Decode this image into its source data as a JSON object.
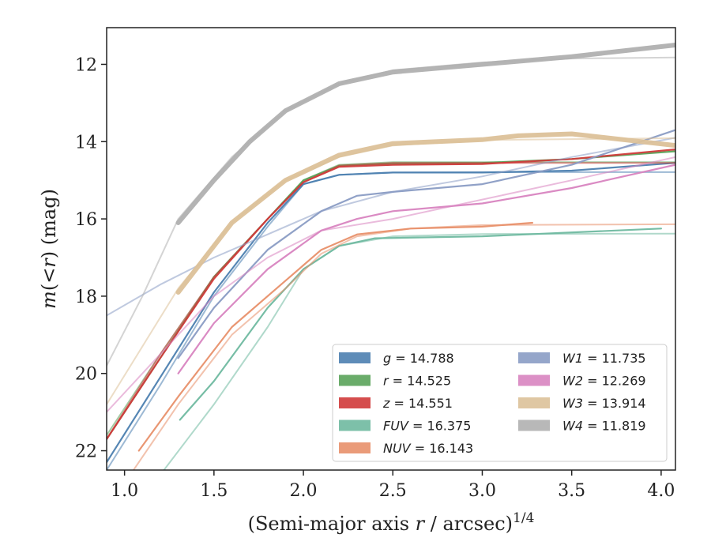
{
  "chart_data": {
    "type": "line",
    "xlabel_main": "(Semi-major axis ",
    "xlabel_var": "r",
    "xlabel_tail": " / arcsec)",
    "xlabel_exp": "1/4",
    "ylabel_m": "m",
    "ylabel_mid": "(<",
    "ylabel_r": "r",
    "ylabel_tail": ") (mag)",
    "xlim": [
      0.9,
      4.08
    ],
    "ylim": [
      22.5,
      11.05
    ],
    "y_inverted": true,
    "xticks": [
      1.0,
      1.5,
      2.0,
      2.5,
      3.0,
      3.5,
      4.0
    ],
    "xtick_labels": [
      "1.0",
      "1.5",
      "2.0",
      "2.5",
      "3.0",
      "3.5",
      "4.0"
    ],
    "yticks": [
      12,
      14,
      16,
      18,
      20,
      22
    ],
    "ytick_labels": [
      "12",
      "14",
      "16",
      "18",
      "20",
      "22"
    ],
    "grid": false,
    "legend_position": "lower-right",
    "series": [
      {
        "name": "g",
        "value_text": "= 14.788",
        "color": "#4c7fb0",
        "width": 2,
        "fit": [
          [
            0.9,
            22.5
          ],
          [
            1.2,
            20.3
          ],
          [
            1.5,
            18.0
          ],
          [
            1.8,
            16.2
          ],
          [
            2.0,
            15.1
          ],
          [
            2.2,
            14.86
          ],
          [
            2.5,
            14.8
          ],
          [
            3.0,
            14.79
          ],
          [
            4.08,
            14.79
          ]
        ],
        "obs": [
          [
            0.9,
            22.3
          ],
          [
            1.2,
            20.1
          ],
          [
            1.5,
            17.9
          ],
          [
            1.8,
            16.1
          ],
          [
            2.0,
            15.1
          ],
          [
            2.2,
            14.86
          ],
          [
            2.5,
            14.8
          ],
          [
            3.0,
            14.8
          ],
          [
            3.5,
            14.75
          ],
          [
            4.08,
            14.55
          ]
        ]
      },
      {
        "name": "r",
        "value_text": "= 14.525",
        "color": "#5aa35a",
        "width": 2,
        "fit": [
          [
            0.9,
            21.6
          ],
          [
            1.2,
            19.5
          ],
          [
            1.5,
            17.5
          ],
          [
            1.8,
            16.0
          ],
          [
            2.0,
            15.0
          ],
          [
            2.2,
            14.6
          ],
          [
            2.5,
            14.53
          ],
          [
            4.08,
            14.53
          ]
        ],
        "obs": [
          [
            0.9,
            21.7
          ],
          [
            1.2,
            19.6
          ],
          [
            1.5,
            17.5
          ],
          [
            1.8,
            16.0
          ],
          [
            2.0,
            15.0
          ],
          [
            2.2,
            14.62
          ],
          [
            2.5,
            14.56
          ],
          [
            3.0,
            14.55
          ],
          [
            3.5,
            14.45
          ],
          [
            4.08,
            14.25
          ]
        ]
      },
      {
        "name": "z",
        "value_text": "= 14.551",
        "color": "#d03a3a",
        "width": 2,
        "fit": [
          [
            0.9,
            21.7
          ],
          [
            1.2,
            19.5
          ],
          [
            1.5,
            17.5
          ],
          [
            1.8,
            16.0
          ],
          [
            2.0,
            15.05
          ],
          [
            2.2,
            14.62
          ],
          [
            2.5,
            14.55
          ],
          [
            4.08,
            14.55
          ]
        ],
        "obs": [
          [
            0.9,
            21.7
          ],
          [
            1.2,
            19.6
          ],
          [
            1.5,
            17.55
          ],
          [
            1.8,
            16.0
          ],
          [
            2.0,
            15.05
          ],
          [
            2.2,
            14.65
          ],
          [
            2.5,
            14.6
          ],
          [
            3.0,
            14.58
          ],
          [
            3.5,
            14.45
          ],
          [
            4.08,
            14.2
          ]
        ]
      },
      {
        "name": "FUV",
        "value_text": "= 16.375",
        "color": "#6fb9a0",
        "width": 2,
        "fit": [
          [
            1.22,
            22.5
          ],
          [
            1.5,
            20.8
          ],
          [
            1.8,
            18.8
          ],
          [
            2.0,
            17.3
          ],
          [
            2.2,
            16.7
          ],
          [
            2.5,
            16.45
          ],
          [
            3.0,
            16.39
          ],
          [
            4.08,
            16.38
          ]
        ],
        "obs": [
          [
            1.31,
            21.2
          ],
          [
            1.5,
            20.2
          ],
          [
            1.8,
            18.3
          ],
          [
            2.0,
            17.3
          ],
          [
            2.2,
            16.7
          ],
          [
            2.4,
            16.5
          ],
          [
            3.0,
            16.45
          ],
          [
            4.0,
            16.25
          ]
        ]
      },
      {
        "name": "NUV",
        "value_text": "= 16.143",
        "color": "#e8906a",
        "width": 2,
        "fit": [
          [
            1.05,
            22.5
          ],
          [
            1.3,
            20.8
          ],
          [
            1.6,
            19.0
          ],
          [
            1.9,
            17.8
          ],
          [
            2.1,
            16.9
          ],
          [
            2.3,
            16.45
          ],
          [
            2.6,
            16.25
          ],
          [
            3.0,
            16.16
          ],
          [
            4.08,
            16.14
          ]
        ],
        "obs": [
          [
            1.08,
            22.0
          ],
          [
            1.3,
            20.6
          ],
          [
            1.6,
            18.8
          ],
          [
            1.9,
            17.6
          ],
          [
            2.1,
            16.8
          ],
          [
            2.3,
            16.4
          ],
          [
            2.6,
            16.25
          ],
          [
            3.0,
            16.2
          ],
          [
            3.28,
            16.1
          ]
        ]
      },
      {
        "name": "W1",
        "value_text": "= 11.735",
        "color": "#8a9cc4",
        "width": 2,
        "fit": [
          [
            0.9,
            18.5
          ],
          [
            1.2,
            17.7
          ],
          [
            1.5,
            17.0
          ],
          [
            1.8,
            16.4
          ],
          [
            2.1,
            15.8
          ],
          [
            2.5,
            15.3
          ],
          [
            3.0,
            14.9
          ],
          [
            3.5,
            14.4
          ],
          [
            4.08,
            13.9
          ]
        ],
        "obs": [
          [
            1.3,
            19.6
          ],
          [
            1.5,
            18.3
          ],
          [
            1.8,
            16.8
          ],
          [
            2.1,
            15.8
          ],
          [
            2.3,
            15.4
          ],
          [
            2.5,
            15.3
          ],
          [
            3.0,
            15.1
          ],
          [
            3.5,
            14.6
          ],
          [
            4.08,
            13.7
          ]
        ]
      },
      {
        "name": "W2",
        "value_text": "= 12.269",
        "color": "#d884c0",
        "width": 2,
        "fit": [
          [
            0.9,
            21.0
          ],
          [
            1.2,
            19.5
          ],
          [
            1.5,
            18.0
          ],
          [
            1.8,
            17.0
          ],
          [
            2.1,
            16.3
          ],
          [
            2.5,
            16.0
          ],
          [
            3.0,
            15.5
          ],
          [
            3.5,
            15.0
          ],
          [
            4.08,
            14.4
          ]
        ],
        "obs": [
          [
            1.3,
            20.0
          ],
          [
            1.5,
            18.7
          ],
          [
            1.8,
            17.3
          ],
          [
            2.1,
            16.3
          ],
          [
            2.3,
            16.0
          ],
          [
            2.5,
            15.8
          ],
          [
            3.0,
            15.6
          ],
          [
            3.5,
            15.2
          ],
          [
            4.08,
            14.6
          ]
        ]
      },
      {
        "name": "W3",
        "value_text": "= 13.914",
        "color": "#dcc199",
        "width": 2,
        "fit": [
          [
            0.9,
            20.8
          ],
          [
            1.1,
            19.3
          ],
          [
            1.3,
            17.8
          ],
          [
            1.6,
            16.1
          ],
          [
            1.9,
            15.0
          ],
          [
            2.2,
            14.4
          ],
          [
            2.5,
            14.1
          ],
          [
            3.0,
            13.96
          ],
          [
            4.08,
            13.91
          ]
        ],
        "obs": [
          [
            1.3,
            17.9
          ],
          [
            1.6,
            16.1
          ],
          [
            1.9,
            15.0
          ],
          [
            2.2,
            14.35
          ],
          [
            2.5,
            14.05
          ],
          [
            3.0,
            13.95
          ],
          [
            3.2,
            13.85
          ],
          [
            3.5,
            13.8
          ],
          [
            4.08,
            14.1
          ]
        ],
        "obs_width": 6
      },
      {
        "name": "W4",
        "value_text": "= 11.819",
        "color": "#b0b0b0",
        "width": 2,
        "fit": [
          [
            0.9,
            19.8
          ],
          [
            1.1,
            18.0
          ],
          [
            1.3,
            16.0
          ],
          [
            1.6,
            14.4
          ],
          [
            1.9,
            13.2
          ],
          [
            2.2,
            12.5
          ],
          [
            2.5,
            12.15
          ],
          [
            3.0,
            11.95
          ],
          [
            3.5,
            11.85
          ],
          [
            4.08,
            11.82
          ]
        ],
        "obs": [
          [
            1.3,
            16.1
          ],
          [
            1.5,
            15.0
          ],
          [
            1.7,
            14.0
          ],
          [
            1.9,
            13.2
          ],
          [
            2.2,
            12.5
          ],
          [
            2.5,
            12.2
          ],
          [
            3.0,
            12.0
          ],
          [
            3.5,
            11.8
          ],
          [
            4.08,
            11.5
          ]
        ],
        "obs_width": 6
      }
    ]
  }
}
